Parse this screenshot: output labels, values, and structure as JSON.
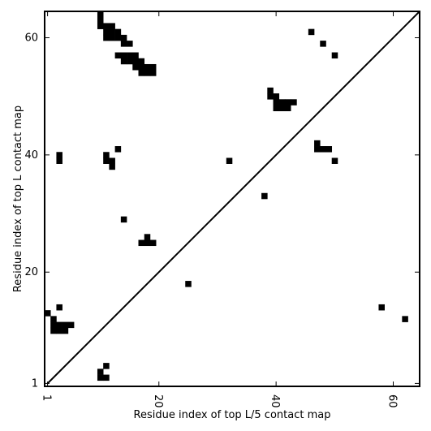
{
  "chart_data": {
    "type": "heatmap",
    "xlabel": "Residue index of top L/5 contact map",
    "ylabel": "Residue index of top L contact map",
    "xlim": [
      0.5,
      64.5
    ],
    "ylim": [
      0.5,
      64.5
    ],
    "x_ticks": [
      1,
      20,
      40,
      60
    ],
    "y_ticks": [
      1,
      20,
      40,
      60
    ],
    "x_tick_labels": [
      "1",
      "20",
      "40",
      "60"
    ],
    "y_tick_labels": [
      "1",
      "20",
      "40",
      "60"
    ],
    "x_tick_rotation": -90,
    "diagonal": true,
    "grid": false,
    "cell_color": "#000000",
    "background_color": "#ffffff",
    "cells": [
      [
        10,
        64
      ],
      [
        10,
        63
      ],
      [
        10,
        62
      ],
      [
        11,
        62
      ],
      [
        12,
        62
      ],
      [
        11,
        61
      ],
      [
        12,
        61
      ],
      [
        13,
        61
      ],
      [
        11,
        60
      ],
      [
        12,
        60
      ],
      [
        13,
        60
      ],
      [
        14,
        60
      ],
      [
        14,
        59
      ],
      [
        15,
        59
      ],
      [
        13,
        57
      ],
      [
        14,
        57
      ],
      [
        15,
        57
      ],
      [
        16,
        57
      ],
      [
        14,
        56
      ],
      [
        15,
        56
      ],
      [
        16,
        56
      ],
      [
        17,
        56
      ],
      [
        16,
        55
      ],
      [
        17,
        55
      ],
      [
        18,
        55
      ],
      [
        19,
        55
      ],
      [
        17,
        54
      ],
      [
        18,
        54
      ],
      [
        19,
        54
      ],
      [
        39,
        51
      ],
      [
        39,
        50
      ],
      [
        40,
        50
      ],
      [
        40,
        49
      ],
      [
        41,
        49
      ],
      [
        42,
        49
      ],
      [
        43,
        49
      ],
      [
        40,
        48
      ],
      [
        41,
        48
      ],
      [
        42,
        48
      ],
      [
        47,
        42
      ],
      [
        47,
        41
      ],
      [
        48,
        41
      ],
      [
        49,
        41
      ],
      [
        46,
        61
      ],
      [
        48,
        59
      ],
      [
        50,
        57
      ],
      [
        13,
        41
      ],
      [
        50,
        39
      ],
      [
        32,
        39
      ],
      [
        38,
        33
      ],
      [
        3,
        40
      ],
      [
        3,
        39
      ],
      [
        11,
        40
      ],
      [
        11,
        39
      ],
      [
        12,
        39
      ],
      [
        12,
        38
      ],
      [
        14,
        29
      ],
      [
        18,
        26
      ],
      [
        17,
        25
      ],
      [
        18,
        25
      ],
      [
        19,
        25
      ],
      [
        25,
        18
      ],
      [
        1,
        13
      ],
      [
        3,
        14
      ],
      [
        2,
        12
      ],
      [
        2,
        11
      ],
      [
        3,
        11
      ],
      [
        4,
        11
      ],
      [
        5,
        11
      ],
      [
        2,
        10
      ],
      [
        3,
        10
      ],
      [
        4,
        10
      ],
      [
        58,
        14
      ],
      [
        62,
        12
      ],
      [
        11,
        4
      ],
      [
        10,
        3
      ],
      [
        10,
        2
      ],
      [
        11,
        2
      ]
    ]
  }
}
